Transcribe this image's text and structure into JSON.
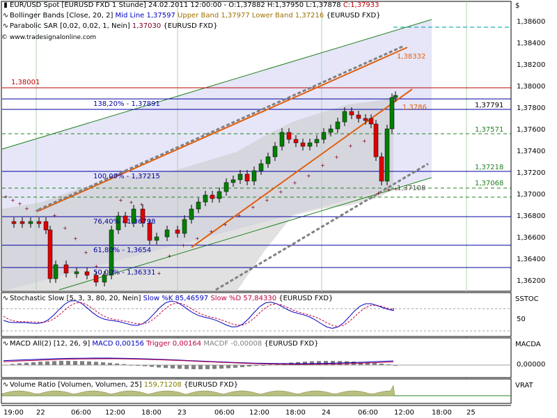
{
  "header": {
    "main_title": "EUR/USD Spot [EURUSD FXD  1 Stunde] 24.02.2011 12:00:00 - O:1,37882 H:1,37950 L:1,37878",
    "close_text": "C:1,37933",
    "currency": "$",
    "bollinger_prefix": "Bollinger Bands [Close, 20, 2]",
    "bollinger_mid": "Mid Line 1,37597",
    "bollinger_upper": "Upper Band 1,37977",
    "bollinger_lower": "Lower Band 1,37216",
    "bollinger_suffix": "{EURUSD FXD}",
    "sar_prefix": "Parabolic SAR [0,02, 0,02, 1, Nein]",
    "sar_value": "1,37030",
    "sar_suffix": "{EURUSD FXD}",
    "website": "© www.tradesignalonline.com"
  },
  "price_axis": {
    "ticks": [
      "1,38600",
      "1,38400",
      "1,38200",
      "1,38000",
      "1,37800",
      "1,37600",
      "1,37400",
      "1,37200",
      "1,37000",
      "1,36800",
      "1,36600",
      "1,36400",
      "1,36200"
    ]
  },
  "levels": {
    "red_line": "1,38001",
    "fib_138": "138,20% - 1,37891",
    "fib_100": "100,00% - 1,37215",
    "fib_76": "76,40% - 1,36798",
    "fib_61": "61,80% - 1,3654",
    "fib_50": "50,00% - 1,36331",
    "right_37791": "1,37791",
    "right_37571": "1,37571",
    "right_37218": "1,37218",
    "right_37068": "1,37068",
    "right_37108": "1,37108",
    "orange_38332": "1,38332",
    "orange_3786": "1,3786"
  },
  "stochastic": {
    "label_prefix": "Stochastic Slow [5, 3, 3, 80, 20, Nein]",
    "k_label": "Slow %K 85,46597",
    "d_label": "Slow %D 57,84330",
    "suffix": "{EURUSD FXD}",
    "pane_name": "SSTOC",
    "tick": "50"
  },
  "macd": {
    "label_prefix": "MACD All(2) [12, 26, 9]",
    "macd_label": "MACD 0,00156",
    "trigger_label": "Trigger 0,00164",
    "macdf_label": "MACDF -0,00008",
    "suffix": "{EURUSD FXD}",
    "pane_name": "MACDA",
    "tick": "0,00000"
  },
  "volume": {
    "label_prefix": "Volume Ratio [Volumen, Volumen, 25]",
    "value_label": "159,71208",
    "suffix": "{EURUSD FXD}",
    "pane_name": "VRAT"
  },
  "time_axis": {
    "ticks": [
      "19:00",
      "22",
      "06:00",
      "12:00",
      "18:00",
      "23",
      "06:00",
      "12:00",
      "18:00",
      "24",
      "06:00",
      "12:00",
      "18:00",
      "25"
    ]
  },
  "colors": {
    "up_candle": "#008000",
    "down_candle": "#e00000",
    "bollinger_fill": "#e6e6f8",
    "sar": "#800020",
    "fib_line": "#0000a0",
    "red_level": "#c00000",
    "orange_trend": "#e06010",
    "green_channel": "#208020",
    "cyan_dash": "#20b0b0"
  }
}
